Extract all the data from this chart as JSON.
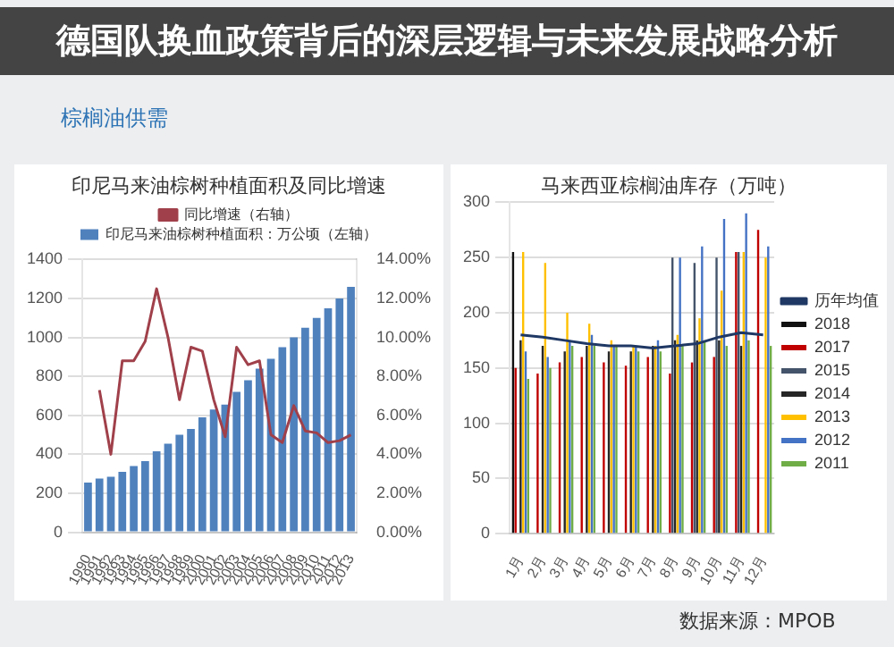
{
  "chart_data": [
    {
      "type": "bar",
      "title": "印尼马来油棕树种植面积及同比增速",
      "annotations": [
        "德国队换血政策背后的深层逻辑与未来发展战略分析",
        "棕榈油供需"
      ],
      "categories": [
        "1990",
        "1991",
        "1992",
        "1993",
        "1994",
        "1995",
        "1996",
        "1997",
        "1998",
        "1999",
        "2000",
        "2001",
        "2002",
        "2003",
        "2004",
        "2005",
        "2006",
        "2007",
        "2008",
        "2009",
        "2010",
        "2011",
        "2012",
        "2013"
      ],
      "series": [
        {
          "name": "印尼马来油棕树种植面积：万公顷（左轴）",
          "color": "#4f81bd",
          "values": [
            255,
            275,
            285,
            310,
            340,
            365,
            415,
            455,
            500,
            530,
            590,
            630,
            655,
            720,
            780,
            840,
            890,
            950,
            1000,
            1050,
            1100,
            1150,
            1200,
            1260
          ]
        },
        {
          "name": "同比增速（右轴）",
          "type": "line",
          "axis": "y2",
          "color": "#a0404a",
          "values": [
            null,
            7.3,
            4.0,
            8.8,
            8.8,
            9.8,
            12.5,
            10.0,
            6.8,
            9.5,
            9.3,
            6.8,
            4.9,
            9.5,
            8.6,
            8.8,
            5.0,
            4.6,
            6.5,
            5.2,
            5.1,
            4.6,
            4.7,
            5.0
          ]
        }
      ],
      "ylim": [
        0,
        1400
      ],
      "yticks": [
        0,
        200,
        400,
        600,
        800,
        1000,
        1200,
        1400
      ],
      "y2lim": [
        0,
        14
      ],
      "y2ticks": [
        {
          "value": 0,
          "label": "0.00%"
        },
        {
          "value": 2,
          "label": "2.00%"
        },
        {
          "value": 4,
          "label": "4.00%"
        },
        {
          "value": 6,
          "label": "6.00%"
        },
        {
          "value": 8,
          "label": "8.00%"
        },
        {
          "value": 10,
          "label": "10.00%"
        },
        {
          "value": 12,
          "label": "12.00%"
        },
        {
          "value": 14,
          "label": "14.00%"
        }
      ],
      "legend": "top",
      "grid": "y",
      "marker": "none"
    },
    {
      "type": "bar",
      "title": "马来西亚棕榈油库存（万吨）",
      "annotations": [
        "数据来源：MPOB"
      ],
      "categories": [
        "1月",
        "2月",
        "3月",
        "4月",
        "5月",
        "6月",
        "7月",
        "8月",
        "9月",
        "10月",
        "11月",
        "12月"
      ],
      "series": [
        {
          "name": "2018",
          "color": "#111111",
          "values": [
            255,
            null,
            null,
            null,
            null,
            null,
            null,
            null,
            null,
            null,
            null,
            null
          ]
        },
        {
          "name": "2017",
          "color": "#c00000",
          "values": [
            150,
            145,
            155,
            160,
            155,
            152,
            160,
            145,
            155,
            160,
            255,
            275
          ]
        },
        {
          "name": "2015",
          "color": "#44546a",
          "values": [
            null,
            null,
            null,
            null,
            null,
            null,
            null,
            250,
            245,
            250,
            255,
            null
          ]
        },
        {
          "name": "2014",
          "color": "#262626",
          "values": [
            175,
            170,
            165,
            170,
            165,
            165,
            170,
            175,
            175,
            175,
            170,
            null
          ]
        },
        {
          "name": "2013",
          "color": "#ffc000",
          "values": [
            255,
            245,
            200,
            190,
            175,
            170,
            170,
            180,
            195,
            220,
            255,
            250
          ]
        },
        {
          "name": "2012",
          "color": "#4472c4",
          "values": [
            165,
            160,
            175,
            180,
            170,
            170,
            175,
            250,
            260,
            285,
            290,
            260
          ]
        },
        {
          "name": "2011",
          "color": "#70ad47",
          "values": [
            140,
            150,
            170,
            170,
            170,
            165,
            165,
            170,
            175,
            170,
            175,
            170
          ]
        },
        {
          "name": "历年均值",
          "type": "line",
          "color": "#1f3864",
          "values": [
            180,
            178,
            175,
            172,
            170,
            170,
            168,
            170,
            172,
            178,
            182,
            180
          ]
        }
      ],
      "ylim": [
        0,
        300
      ],
      "yticks": [
        0,
        50,
        100,
        150,
        200,
        250,
        300
      ],
      "legend": "right",
      "grid": "y",
      "marker": "none"
    }
  ]
}
